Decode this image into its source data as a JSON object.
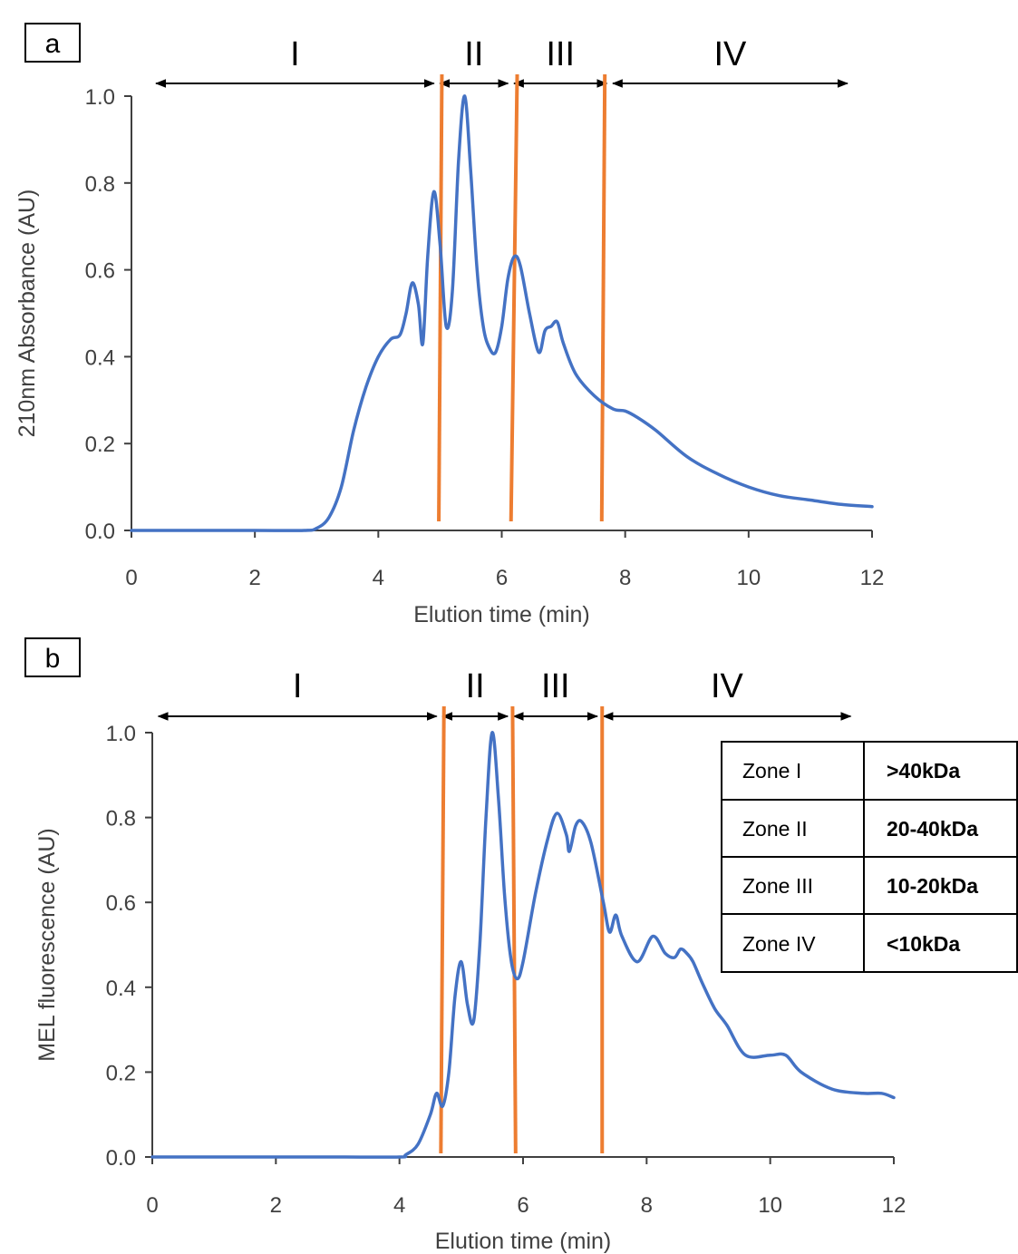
{
  "colors": {
    "curve": "#4472C4",
    "boundary": "#ED7D31",
    "axis": "#404040",
    "arrow": "#000000"
  },
  "zone_legend": {
    "rows": [
      {
        "zone": "Zone I",
        "range": ">40kDa"
      },
      {
        "zone": "Zone II",
        "range": "20-40kDa"
      },
      {
        "zone": "Zone III",
        "range": "10-20kDa"
      },
      {
        "zone": "Zone IV",
        "range": "<10kDa"
      }
    ]
  },
  "chart_data": [
    {
      "panel_label": "a",
      "type": "line",
      "xlabel": "Elution time (min)",
      "ylabel": "210nm Absorbance (AU)",
      "xlim": [
        0,
        12
      ],
      "ylim": [
        0,
        1.0
      ],
      "xticks": [
        0,
        2,
        4,
        6,
        8,
        10,
        12
      ],
      "yticks": [
        0.0,
        0.2,
        0.4,
        0.6,
        0.8,
        1.0
      ],
      "ytick_labels": [
        "0.0",
        "0.2",
        "0.4",
        "0.6",
        "0.8",
        "1.0"
      ],
      "zone_labels": [
        "I",
        "II",
        "III",
        "IV"
      ],
      "zone_arrows": [
        [
          0.4,
          4.9
        ],
        [
          5.0,
          6.1
        ],
        [
          6.2,
          7.7
        ],
        [
          7.8,
          11.6
        ]
      ],
      "boundaries": [
        [
          5.03,
          4.98
        ],
        [
          6.25,
          6.15
        ],
        [
          7.67,
          7.62
        ]
      ],
      "x": [
        0,
        1,
        2,
        2.8,
        3.0,
        3.2,
        3.4,
        3.6,
        3.8,
        4.0,
        4.2,
        4.35,
        4.45,
        4.55,
        4.65,
        4.72,
        4.8,
        4.9,
        5.0,
        5.1,
        5.2,
        5.3,
        5.4,
        5.5,
        5.6,
        5.7,
        5.8,
        5.9,
        6.0,
        6.1,
        6.2,
        6.3,
        6.45,
        6.6,
        6.7,
        6.8,
        6.9,
        7.0,
        7.2,
        7.5,
        7.8,
        8.0,
        8.2,
        8.5,
        9.0,
        9.5,
        10.0,
        10.5,
        11.0,
        11.5,
        12.0
      ],
      "y": [
        0.0,
        0.0,
        0.0,
        0.0,
        0.005,
        0.03,
        0.1,
        0.23,
        0.33,
        0.4,
        0.44,
        0.45,
        0.5,
        0.57,
        0.52,
        0.43,
        0.63,
        0.78,
        0.66,
        0.47,
        0.55,
        0.85,
        1.0,
        0.82,
        0.6,
        0.47,
        0.42,
        0.41,
        0.47,
        0.58,
        0.63,
        0.61,
        0.5,
        0.41,
        0.46,
        0.47,
        0.48,
        0.43,
        0.36,
        0.31,
        0.28,
        0.275,
        0.26,
        0.23,
        0.17,
        0.13,
        0.1,
        0.08,
        0.07,
        0.06,
        0.055
      ]
    },
    {
      "panel_label": "b",
      "type": "line",
      "xlabel": "Elution time (min)",
      "ylabel": "MEL fluorescence (AU)",
      "xlim": [
        0,
        12
      ],
      "ylim": [
        0,
        1.0
      ],
      "xticks": [
        0,
        2,
        4,
        6,
        8,
        10,
        12
      ],
      "yticks": [
        0.0,
        0.2,
        0.4,
        0.6,
        0.8,
        1.0
      ],
      "ytick_labels": [
        "0.0",
        "0.2",
        "0.4",
        "0.6",
        "0.8",
        "1.0"
      ],
      "zone_labels": [
        "I",
        "II",
        "III",
        "IV"
      ],
      "zone_arrows": [
        [
          0.1,
          4.6
        ],
        [
          4.7,
          5.75
        ],
        [
          5.85,
          7.2
        ],
        [
          7.3,
          11.3
        ]
      ],
      "boundaries": [
        [
          4.72,
          4.67
        ],
        [
          5.83,
          5.88
        ],
        [
          7.28,
          7.28
        ]
      ],
      "x": [
        0,
        1,
        2,
        3,
        4.0,
        4.1,
        4.3,
        4.5,
        4.6,
        4.7,
        4.8,
        4.9,
        5.0,
        5.1,
        5.2,
        5.3,
        5.4,
        5.5,
        5.6,
        5.7,
        5.8,
        5.9,
        6.0,
        6.2,
        6.4,
        6.55,
        6.7,
        6.75,
        6.85,
        6.95,
        7.1,
        7.3,
        7.4,
        7.5,
        7.6,
        7.85,
        8.1,
        8.3,
        8.45,
        8.55,
        8.65,
        8.75,
        8.9,
        9.1,
        9.3,
        9.6,
        10.0,
        10.25,
        10.5,
        11.0,
        11.5,
        11.8,
        12.0
      ],
      "y": [
        0.0,
        0.0,
        0.0,
        0.0,
        0.0,
        0.005,
        0.03,
        0.1,
        0.15,
        0.12,
        0.2,
        0.38,
        0.46,
        0.36,
        0.32,
        0.5,
        0.8,
        1.0,
        0.85,
        0.62,
        0.47,
        0.42,
        0.46,
        0.62,
        0.75,
        0.81,
        0.76,
        0.72,
        0.78,
        0.79,
        0.74,
        0.6,
        0.53,
        0.57,
        0.52,
        0.46,
        0.52,
        0.48,
        0.47,
        0.49,
        0.48,
        0.46,
        0.41,
        0.35,
        0.31,
        0.24,
        0.24,
        0.24,
        0.2,
        0.16,
        0.15,
        0.15,
        0.14
      ]
    }
  ]
}
